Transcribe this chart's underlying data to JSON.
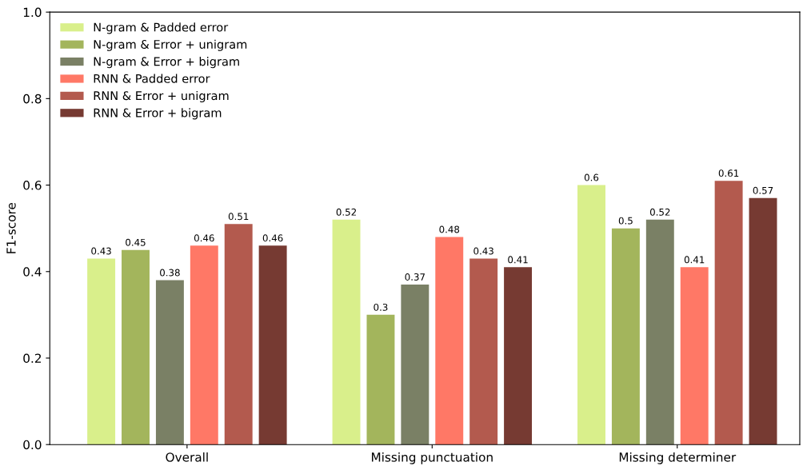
{
  "chart_data": {
    "type": "bar",
    "ylabel": "F1-score",
    "categories": [
      "Overall",
      "Missing punctuation",
      "Missing determiner"
    ],
    "series": [
      {
        "name": "N-gram & Padded error",
        "color": "#d9ef8b",
        "values": [
          0.43,
          0.52,
          0.6
        ]
      },
      {
        "name": "N-gram & Error + unigram",
        "color": "#a3b55c",
        "values": [
          0.45,
          0.3,
          0.5
        ]
      },
      {
        "name": "N-gram & Error + bigram",
        "color": "#7a8065",
        "values": [
          0.38,
          0.37,
          0.52
        ]
      },
      {
        "name": "RNN & Padded error",
        "color": "#ff7866",
        "values": [
          0.46,
          0.48,
          0.41
        ]
      },
      {
        "name": "RNN & Error + unigram",
        "color": "#b35a4e",
        "values": [
          0.51,
          0.43,
          0.61
        ]
      },
      {
        "name": "RNN & Error + bigram",
        "color": "#763a32",
        "values": [
          0.46,
          0.41,
          0.57
        ]
      }
    ],
    "ylim": [
      0.0,
      1.0
    ],
    "yticks": [
      {
        "value": 0.0,
        "label": "0.0"
      },
      {
        "value": 0.2,
        "label": "0.2"
      },
      {
        "value": 0.4,
        "label": "0.4"
      },
      {
        "value": 0.6,
        "label": "0.6"
      },
      {
        "value": 0.8,
        "label": "0.8"
      },
      {
        "value": 1.0,
        "label": "1.0"
      }
    ],
    "data_labels": true,
    "legend": "top left",
    "grid": false
  }
}
